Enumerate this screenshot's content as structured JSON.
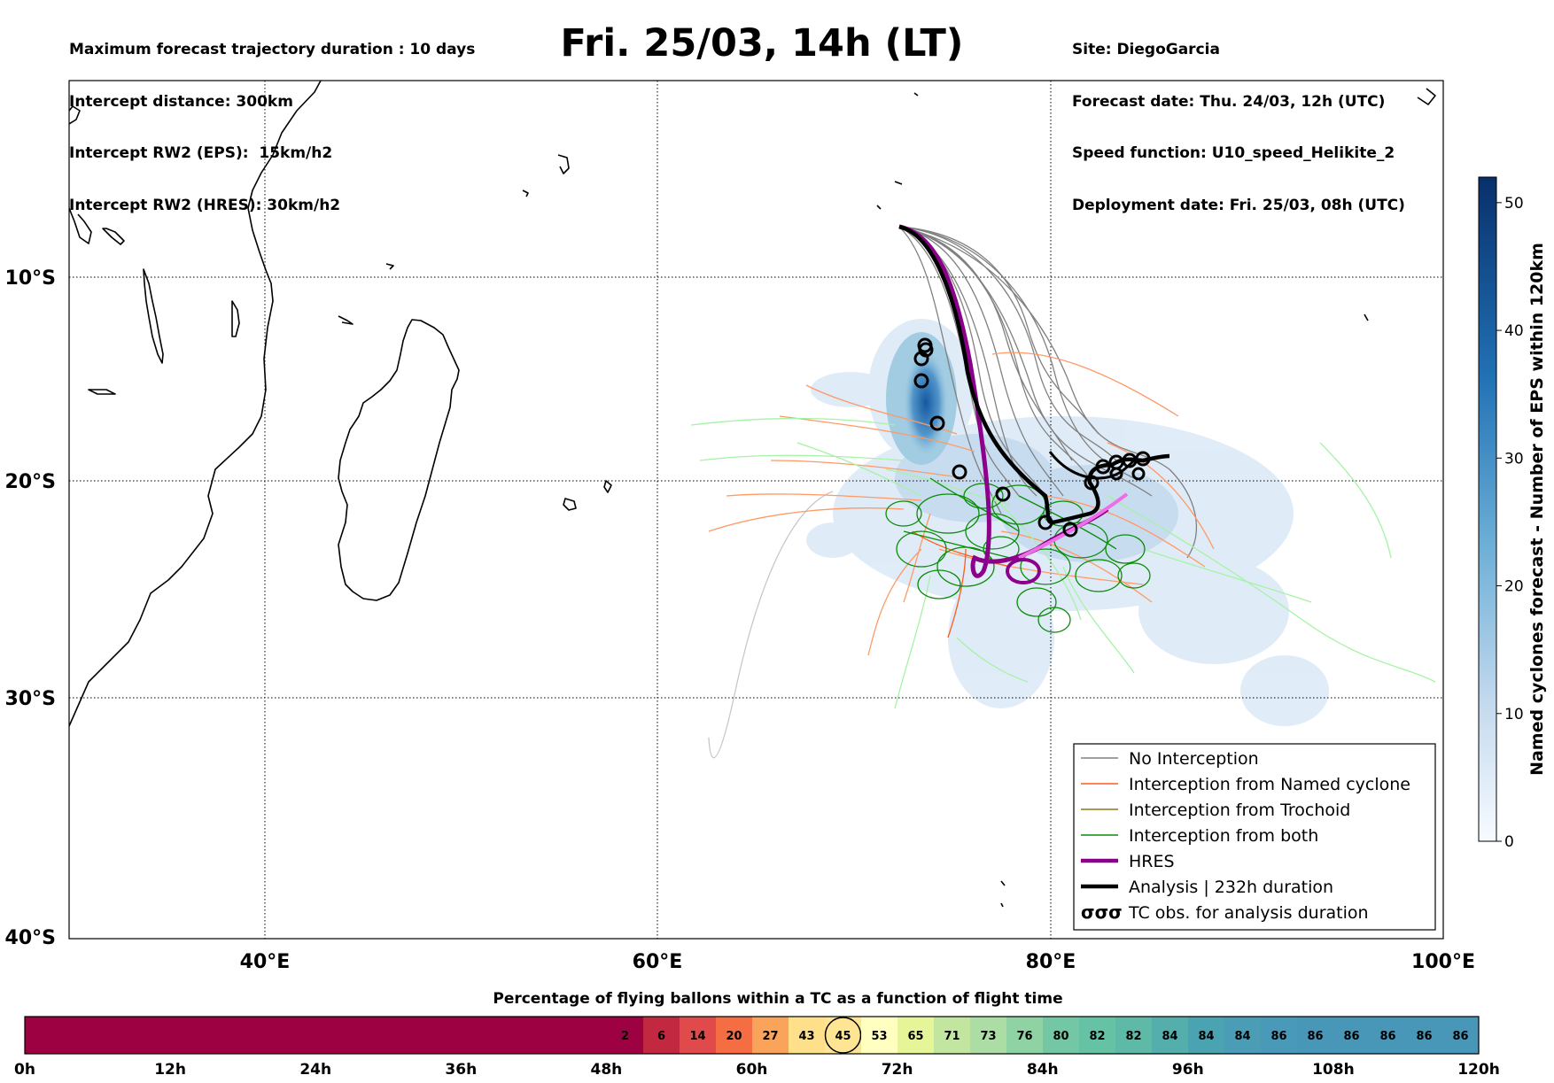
{
  "header": {
    "left_lines": [
      "Maximum forecast trajectory duration : 10 days",
      "Intercept distance: 300km",
      "Intercept RW2 (EPS):  15km/h2",
      "Intercept RW2 (HRES): 30km/h2"
    ],
    "right_lines": [
      "Site: DiegoGarcia",
      "Forecast date: Thu. 24/03, 12h (UTC)",
      "Speed function: U10_speed_Helikite_2",
      "Deployment date: Fri. 25/03, 08h (UTC)"
    ],
    "title": "Fri. 25/03, 14h (LT)"
  },
  "map": {
    "lon_ticks": [
      "40°E",
      "60°E",
      "80°E",
      "100°E"
    ],
    "lat_ticks": [
      "10°S",
      "20°S",
      "30°S",
      "40°S"
    ],
    "lon_values": [
      40,
      60,
      80,
      100
    ],
    "lat_values": [
      -10,
      -20,
      -30,
      -40
    ],
    "extent": {
      "lon": [
        30,
        100
      ],
      "lat": [
        -40.3,
        0.8
      ]
    }
  },
  "legend": {
    "items": [
      {
        "label": "No Interception",
        "color": "#808080"
      },
      {
        "label": "Interception from Named cyclone",
        "color": "#ff5a1e"
      },
      {
        "label": "Interception from Trochoid",
        "color": "#8c7814"
      },
      {
        "label": "Interception from both",
        "color": "#0a8c0a"
      },
      {
        "label": "HRES",
        "color": "#8b008b"
      },
      {
        "label": "Analysis | 232h duration",
        "color": "#000000"
      },
      {
        "label": "TC obs. for analysis duration",
        "color": "#000000"
      }
    ],
    "tc_symbol": "σσσ"
  },
  "colorbar": {
    "label": "Named cyclones forecast - Number of EPS within 120km",
    "ticks": [
      0,
      10,
      20,
      30,
      40,
      50
    ],
    "tick_labels": [
      "0",
      "10",
      "20",
      "30",
      "40",
      "50"
    ],
    "max": 52
  },
  "flight_bar": {
    "title": "Percentage of flying ballons within a TC as a function of flight time",
    "time_labels": [
      "0h",
      "12h",
      "24h",
      "36h",
      "48h",
      "60h",
      "72h",
      "84h",
      "96h",
      "108h",
      "120h"
    ],
    "cells": [
      "2",
      "6",
      "14",
      "20",
      "27",
      "43",
      "45",
      "53",
      "65",
      "71",
      "73",
      "76",
      "80",
      "82",
      "82",
      "84",
      "84",
      "84",
      "86",
      "86",
      "86",
      "86",
      "86",
      "86"
    ],
    "cell_colors": [
      "#9e0142",
      "#c2283f",
      "#e04a4b",
      "#f46d43",
      "#f9a35b",
      "#fee08b",
      "#fee594",
      "#ffffbf",
      "#e6f598",
      "#c2e6a0",
      "#abdda4",
      "#8fd2a4",
      "#73c7a4",
      "#66c2a5",
      "#5eb9a7",
      "#54aeab",
      "#4aa3b0",
      "#4a9db4",
      "#489ab8",
      "#4897b9",
      "#4897b9",
      "#4897b9",
      "#4897b9",
      "#4897b9"
    ],
    "highlighted": "45"
  }
}
